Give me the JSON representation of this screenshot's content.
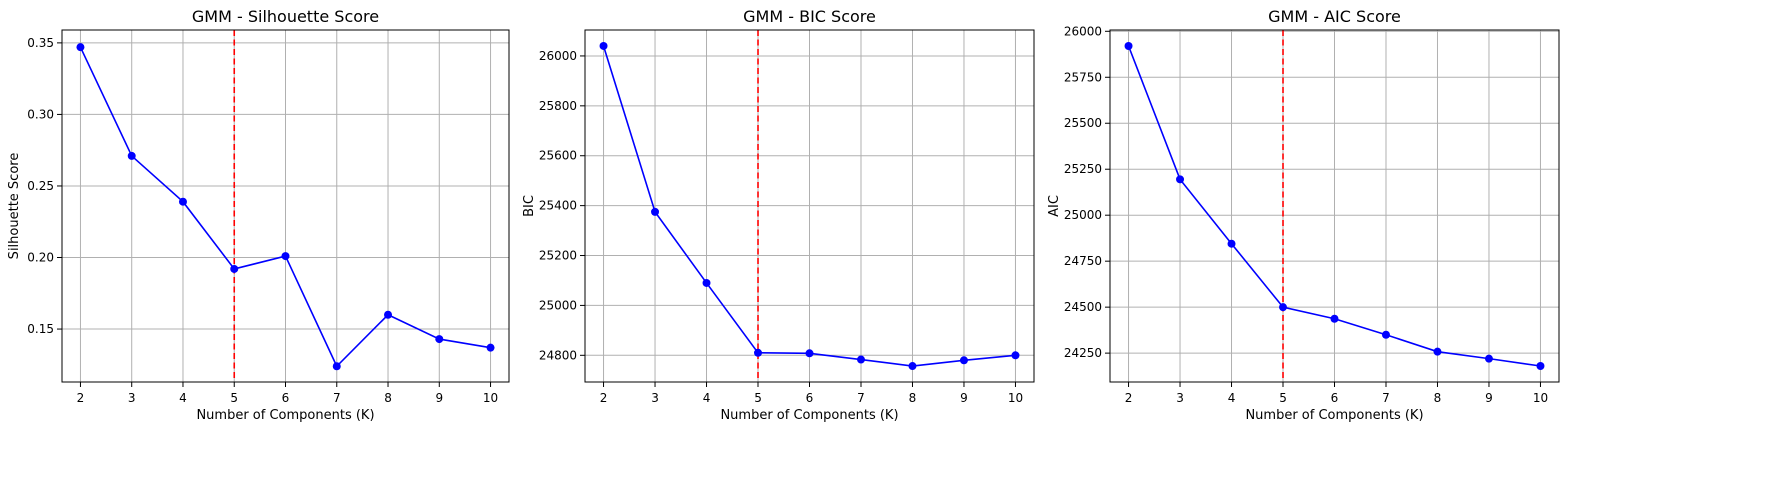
{
  "colors": {
    "line": "#0000ff",
    "marker": "#0000ff",
    "reference_line": "#ff0000",
    "grid": "#b0b0b0",
    "axes": "#000000"
  },
  "chart_data": [
    {
      "type": "line",
      "title": "GMM - Silhouette Score",
      "xlabel": "Number of Components (K)",
      "ylabel": "Silhouette Score",
      "x": [
        2,
        3,
        4,
        5,
        6,
        7,
        8,
        9,
        10
      ],
      "y": [
        0.347,
        0.271,
        0.239,
        0.192,
        0.201,
        0.124,
        0.16,
        0.143,
        0.137
      ],
      "xticks": [
        "2",
        "3",
        "4",
        "5",
        "6",
        "7",
        "8",
        "9",
        "10"
      ],
      "yticks": [
        0.15,
        0.2,
        0.25,
        0.3,
        0.35
      ],
      "ytick_labels": [
        "0.15",
        "0.20",
        "0.25",
        "0.30",
        "0.35"
      ],
      "xlim": [
        1.64,
        10.36
      ],
      "ylim": [
        0.113,
        0.359
      ],
      "vline_x": 5,
      "grid": true
    },
    {
      "type": "line",
      "title": "GMM - BIC Score",
      "xlabel": "Number of Components (K)",
      "ylabel": "BIC",
      "x": [
        2,
        3,
        4,
        5,
        6,
        7,
        8,
        9,
        10
      ],
      "y": [
        26040,
        25375,
        25090,
        24810,
        24808,
        24783,
        24757,
        24780,
        24800
      ],
      "xticks": [
        "2",
        "3",
        "4",
        "5",
        "6",
        "7",
        "8",
        "9",
        "10"
      ],
      "yticks": [
        24800,
        25000,
        25200,
        25400,
        25600,
        25800,
        26000
      ],
      "ytick_labels": [
        "24800",
        "25000",
        "25200",
        "25400",
        "25600",
        "25800",
        "26000"
      ],
      "xlim": [
        1.64,
        10.36
      ],
      "ylim": [
        24693,
        26104
      ],
      "vline_x": 5,
      "grid": true
    },
    {
      "type": "line",
      "title": "GMM - AIC Score",
      "xlabel": "Number of Components (K)",
      "ylabel": "AIC",
      "x": [
        2,
        3,
        4,
        5,
        6,
        7,
        8,
        9,
        10
      ],
      "y": [
        25920,
        25195,
        24845,
        24500,
        24437,
        24350,
        24258,
        24220,
        24180
      ],
      "xticks": [
        "2",
        "3",
        "4",
        "5",
        "6",
        "7",
        "8",
        "9",
        "10"
      ],
      "yticks": [
        24250,
        24500,
        24750,
        25000,
        25250,
        25500,
        25750,
        26000
      ],
      "ytick_labels": [
        "24250",
        "24500",
        "24750",
        "25000",
        "25250",
        "25500",
        "25750",
        "26000"
      ],
      "xlim": [
        1.64,
        10.36
      ],
      "ylim": [
        24093,
        26007
      ],
      "vline_x": 5,
      "grid": true
    }
  ]
}
